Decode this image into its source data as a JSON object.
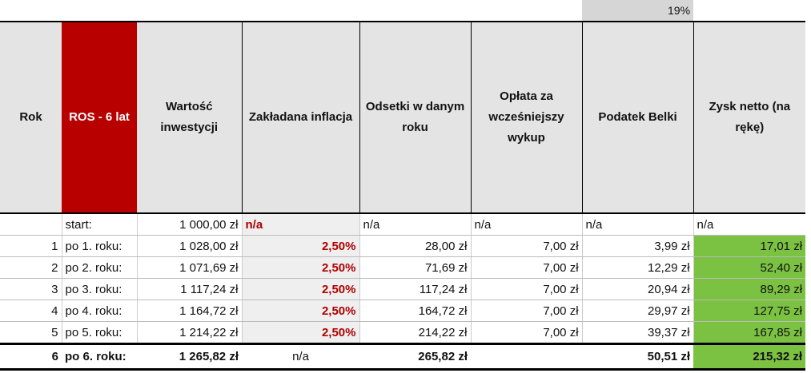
{
  "tax_rate": "19%",
  "headers": [
    "Rok",
    "ROS - 6 lat",
    "Wartość inwestycji",
    "Zakładana inflacja",
    "Odsetki w danym roku",
    "Opłata za wcześniejszy wykup",
    "Podatek Belki",
    "Zysk netto (na rękę)"
  ],
  "start_row": {
    "label": "start:",
    "value": "1 000,00 zł",
    "inflation": "n/a",
    "interest": "n/a",
    "fee": "n/a",
    "tax": "n/a",
    "net": "n/a"
  },
  "rows": [
    {
      "year": "1",
      "label": "po 1. roku:",
      "value": "1 028,00 zł",
      "inflation": "2,50%",
      "interest": "28,00 zł",
      "fee": "7,00 zł",
      "tax": "3,99 zł",
      "net": "17,01 zł"
    },
    {
      "year": "2",
      "label": "po 2. roku:",
      "value": "1 071,69 zł",
      "inflation": "2,50%",
      "interest": "71,69 zł",
      "fee": "7,00 zł",
      "tax": "12,29 zł",
      "net": "52,40 zł"
    },
    {
      "year": "3",
      "label": "po 3. roku:",
      "value": "1 117,24 zł",
      "inflation": "2,50%",
      "interest": "117,24 zł",
      "fee": "7,00 zł",
      "tax": "20,94 zł",
      "net": "89,29 zł"
    },
    {
      "year": "4",
      "label": "po 4. roku:",
      "value": "1 164,72 zł",
      "inflation": "2,50%",
      "interest": "164,72 zł",
      "fee": "7,00 zł",
      "tax": "29,97 zł",
      "net": "127,75 zł"
    },
    {
      "year": "5",
      "label": "po 5. roku:",
      "value": "1 214,22 zł",
      "inflation": "2,50%",
      "interest": "214,22 zł",
      "fee": "7,00 zł",
      "tax": "39,37 zł",
      "net": "167,85 zł"
    }
  ],
  "total_row": {
    "year": "6",
    "label": "po 6. roku:",
    "value": "1 265,82 zł",
    "inflation": "n/a",
    "interest": "265,82 zł",
    "fee": "",
    "tax": "50,51 zł",
    "net": "215,32 zł"
  },
  "colors": {
    "ros_header": "#b80000",
    "net_profit": "#7bc142",
    "inflation_text": "#b00000"
  }
}
